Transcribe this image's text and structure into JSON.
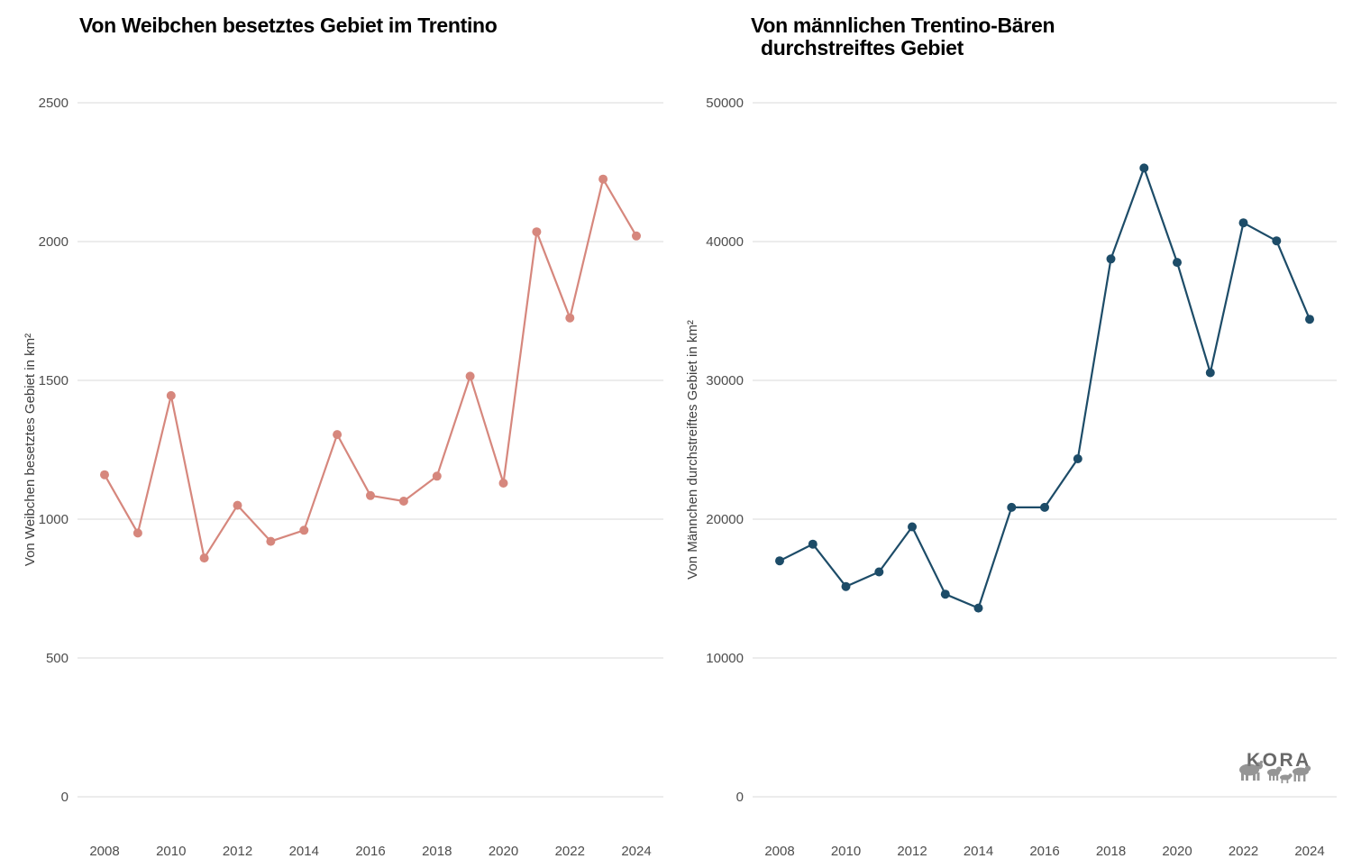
{
  "page": {
    "background": "#ffffff",
    "grid_color": "#d9d9d9",
    "tick_label_color": "#4d4d4d"
  },
  "branding": {
    "logo_text": "KORA",
    "logo_color": "#696969",
    "animal_icons": [
      "bear-silhouette",
      "lynx-silhouette",
      "fox-silhouette",
      "wolf-silhouette"
    ]
  },
  "chart_data": [
    {
      "type": "line",
      "title": "Von Weibchen besetztes Gebiet im Trentino",
      "title_lines": [
        "Von Weibchen besetztes Gebiet im Trentino",
        ""
      ],
      "xlabel": "",
      "ylabel": "Von Weibchen besetztes Gebiet in km²",
      "x": [
        2008,
        2009,
        2010,
        2011,
        2012,
        2013,
        2014,
        2015,
        2016,
        2017,
        2018,
        2019,
        2020,
        2021,
        2022,
        2023,
        2024
      ],
      "values": [
        1160,
        950,
        1445,
        860,
        1050,
        920,
        960,
        1305,
        1085,
        1065,
        1155,
        1515,
        1130,
        2035,
        1725,
        2225,
        2020
      ],
      "ylim": [
        0,
        2500
      ],
      "yticks": [
        0,
        500,
        1000,
        1500,
        2000,
        2500
      ],
      "xticks": [
        2008,
        2010,
        2012,
        2014,
        2016,
        2018,
        2020,
        2022,
        2024
      ],
      "line_color": "#d6877d",
      "marker_color": "#d6877d",
      "grid": "horizontal",
      "legend": "none"
    },
    {
      "type": "line",
      "title": "Von männlichen Trentino-Bären durchstreiftes Gebiet",
      "title_lines": [
        "Von männlichen Trentino-Bären",
        "durchstreiftes Gebiet"
      ],
      "xlabel": "",
      "ylabel": "Von Männchen durchstreiftes Gebiet in km²",
      "x": [
        2008,
        2009,
        2010,
        2011,
        2012,
        2013,
        2014,
        2015,
        2016,
        2017,
        2018,
        2019,
        2020,
        2021,
        2022,
        2023,
        2024
      ],
      "values": [
        17000,
        18200,
        15150,
        16200,
        19450,
        14600,
        13600,
        20850,
        20850,
        24350,
        38750,
        45300,
        38500,
        30550,
        41350,
        40050,
        34400
      ],
      "ylim": [
        0,
        50000
      ],
      "yticks": [
        0,
        10000,
        20000,
        30000,
        40000,
        50000
      ],
      "xticks": [
        2008,
        2010,
        2012,
        2014,
        2016,
        2018,
        2020,
        2022,
        2024
      ],
      "line_color": "#1d4c68",
      "marker_color": "#1d4c68",
      "grid": "horizontal",
      "legend": "none"
    }
  ]
}
